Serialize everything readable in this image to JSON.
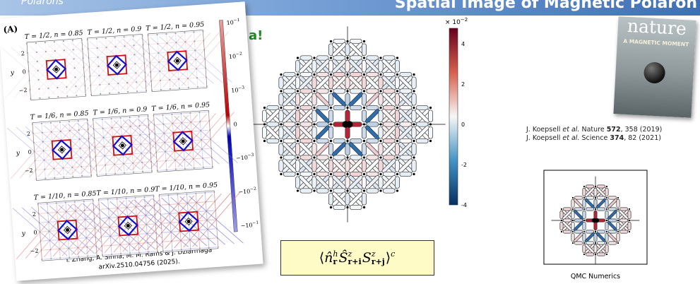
{
  "header": {
    "left": "Polarons",
    "right": "Spatial Image of Magnetic Polaron"
  },
  "partial_heading": "a!",
  "left_figure": {
    "panel_label": "(A)",
    "subplot_titles": [
      "T = 1/2, n = 0.85",
      "T = 1/2, n = 0.9",
      "T = 1/2, n = 0.95",
      "T = 1/6, n = 0.85",
      "T = 1/6, n = 0.9",
      "T = 1/6, n = 0.95",
      "T = 1/10, n = 0.85",
      "T = 1/10, n = 0.9",
      "T = 1/10, n = 0.95"
    ],
    "y_axis": {
      "label": "y",
      "ticks": [
        "2",
        "0",
        "−2"
      ]
    },
    "colorbar_ticks": [
      {
        "base": "10",
        "exp": "−1"
      },
      {
        "base": "10",
        "exp": "−2"
      },
      {
        "base": "10",
        "exp": "−3"
      },
      {
        "base": "0"
      },
      {
        "base": "−10",
        "exp": "−3"
      },
      {
        "base": "−10",
        "exp": "−2"
      },
      {
        "base": "−10",
        "exp": "−1"
      }
    ],
    "caption": [
      "Y. Zhang, A. Sinha, M. M. Rams & J. Dziarmaga",
      "arXiv.2510.04756 (2025)."
    ]
  },
  "center_figure": {
    "colorbar_multiplier": {
      "prefix": "× 10",
      "exp": "−2"
    },
    "colorbar_ticks": [
      "4",
      "2",
      "0",
      "-2",
      "-4"
    ]
  },
  "formula": {
    "open": "⟨",
    "n": "n̂",
    "n_sup": "h",
    "n_sub": "r",
    "s1": "Ŝ",
    "s1_sup": "z",
    "s1_sub": "r+i",
    "s2": "S",
    "s2_sup": "z",
    "s2_sub": "r+j",
    "close": "⟩",
    "close_sup": "c"
  },
  "nature_cover": {
    "title": "nature",
    "headline": "A MAGNETIC MOMENT"
  },
  "references": [
    {
      "author": "J. Koepsell",
      "etal": "et al.",
      "journal": "Nature",
      "volume": "572",
      "rest": ", 358 (2019)"
    },
    {
      "author": "J. Koepsell",
      "etal": "et al.",
      "journal": "Science",
      "volume": "374",
      "rest": ", 82 (2021)"
    }
  ],
  "qmc_caption": "QMC Numerics"
}
